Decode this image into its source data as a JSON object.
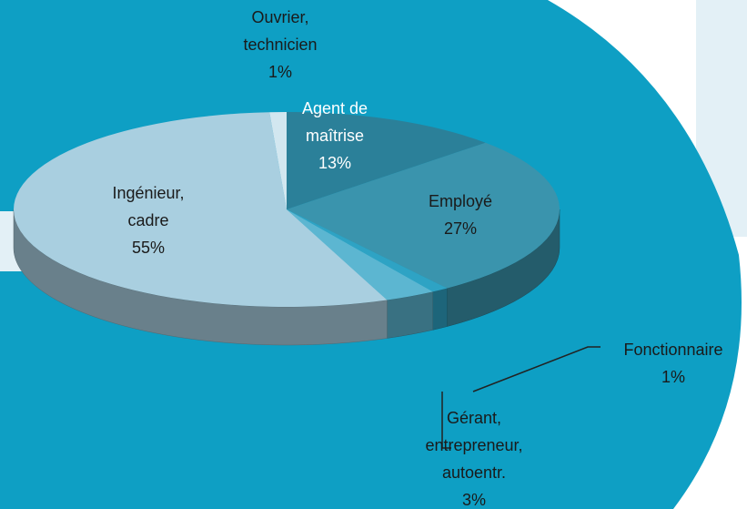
{
  "chart_data": {
    "type": "pie3d",
    "categories": [
      "Agent de\nmaîtrise",
      "Employé",
      "Fonctionnaire",
      "Gérant,\nentrepreneur,\nautoentr.",
      "Ingénieur,\ncadre",
      "Ouvrier,\ntechnicien"
    ],
    "values": [
      13,
      27,
      1,
      3,
      55,
      1
    ],
    "value_labels": [
      "13%",
      "27%",
      "1%",
      "3%",
      "55%",
      "1%"
    ],
    "colors": [
      "#2b8099",
      "#3a94ad",
      "#2ea3c4",
      "#5cb6d1",
      "#a9cfe0",
      "#d2e7f0"
    ]
  }
}
